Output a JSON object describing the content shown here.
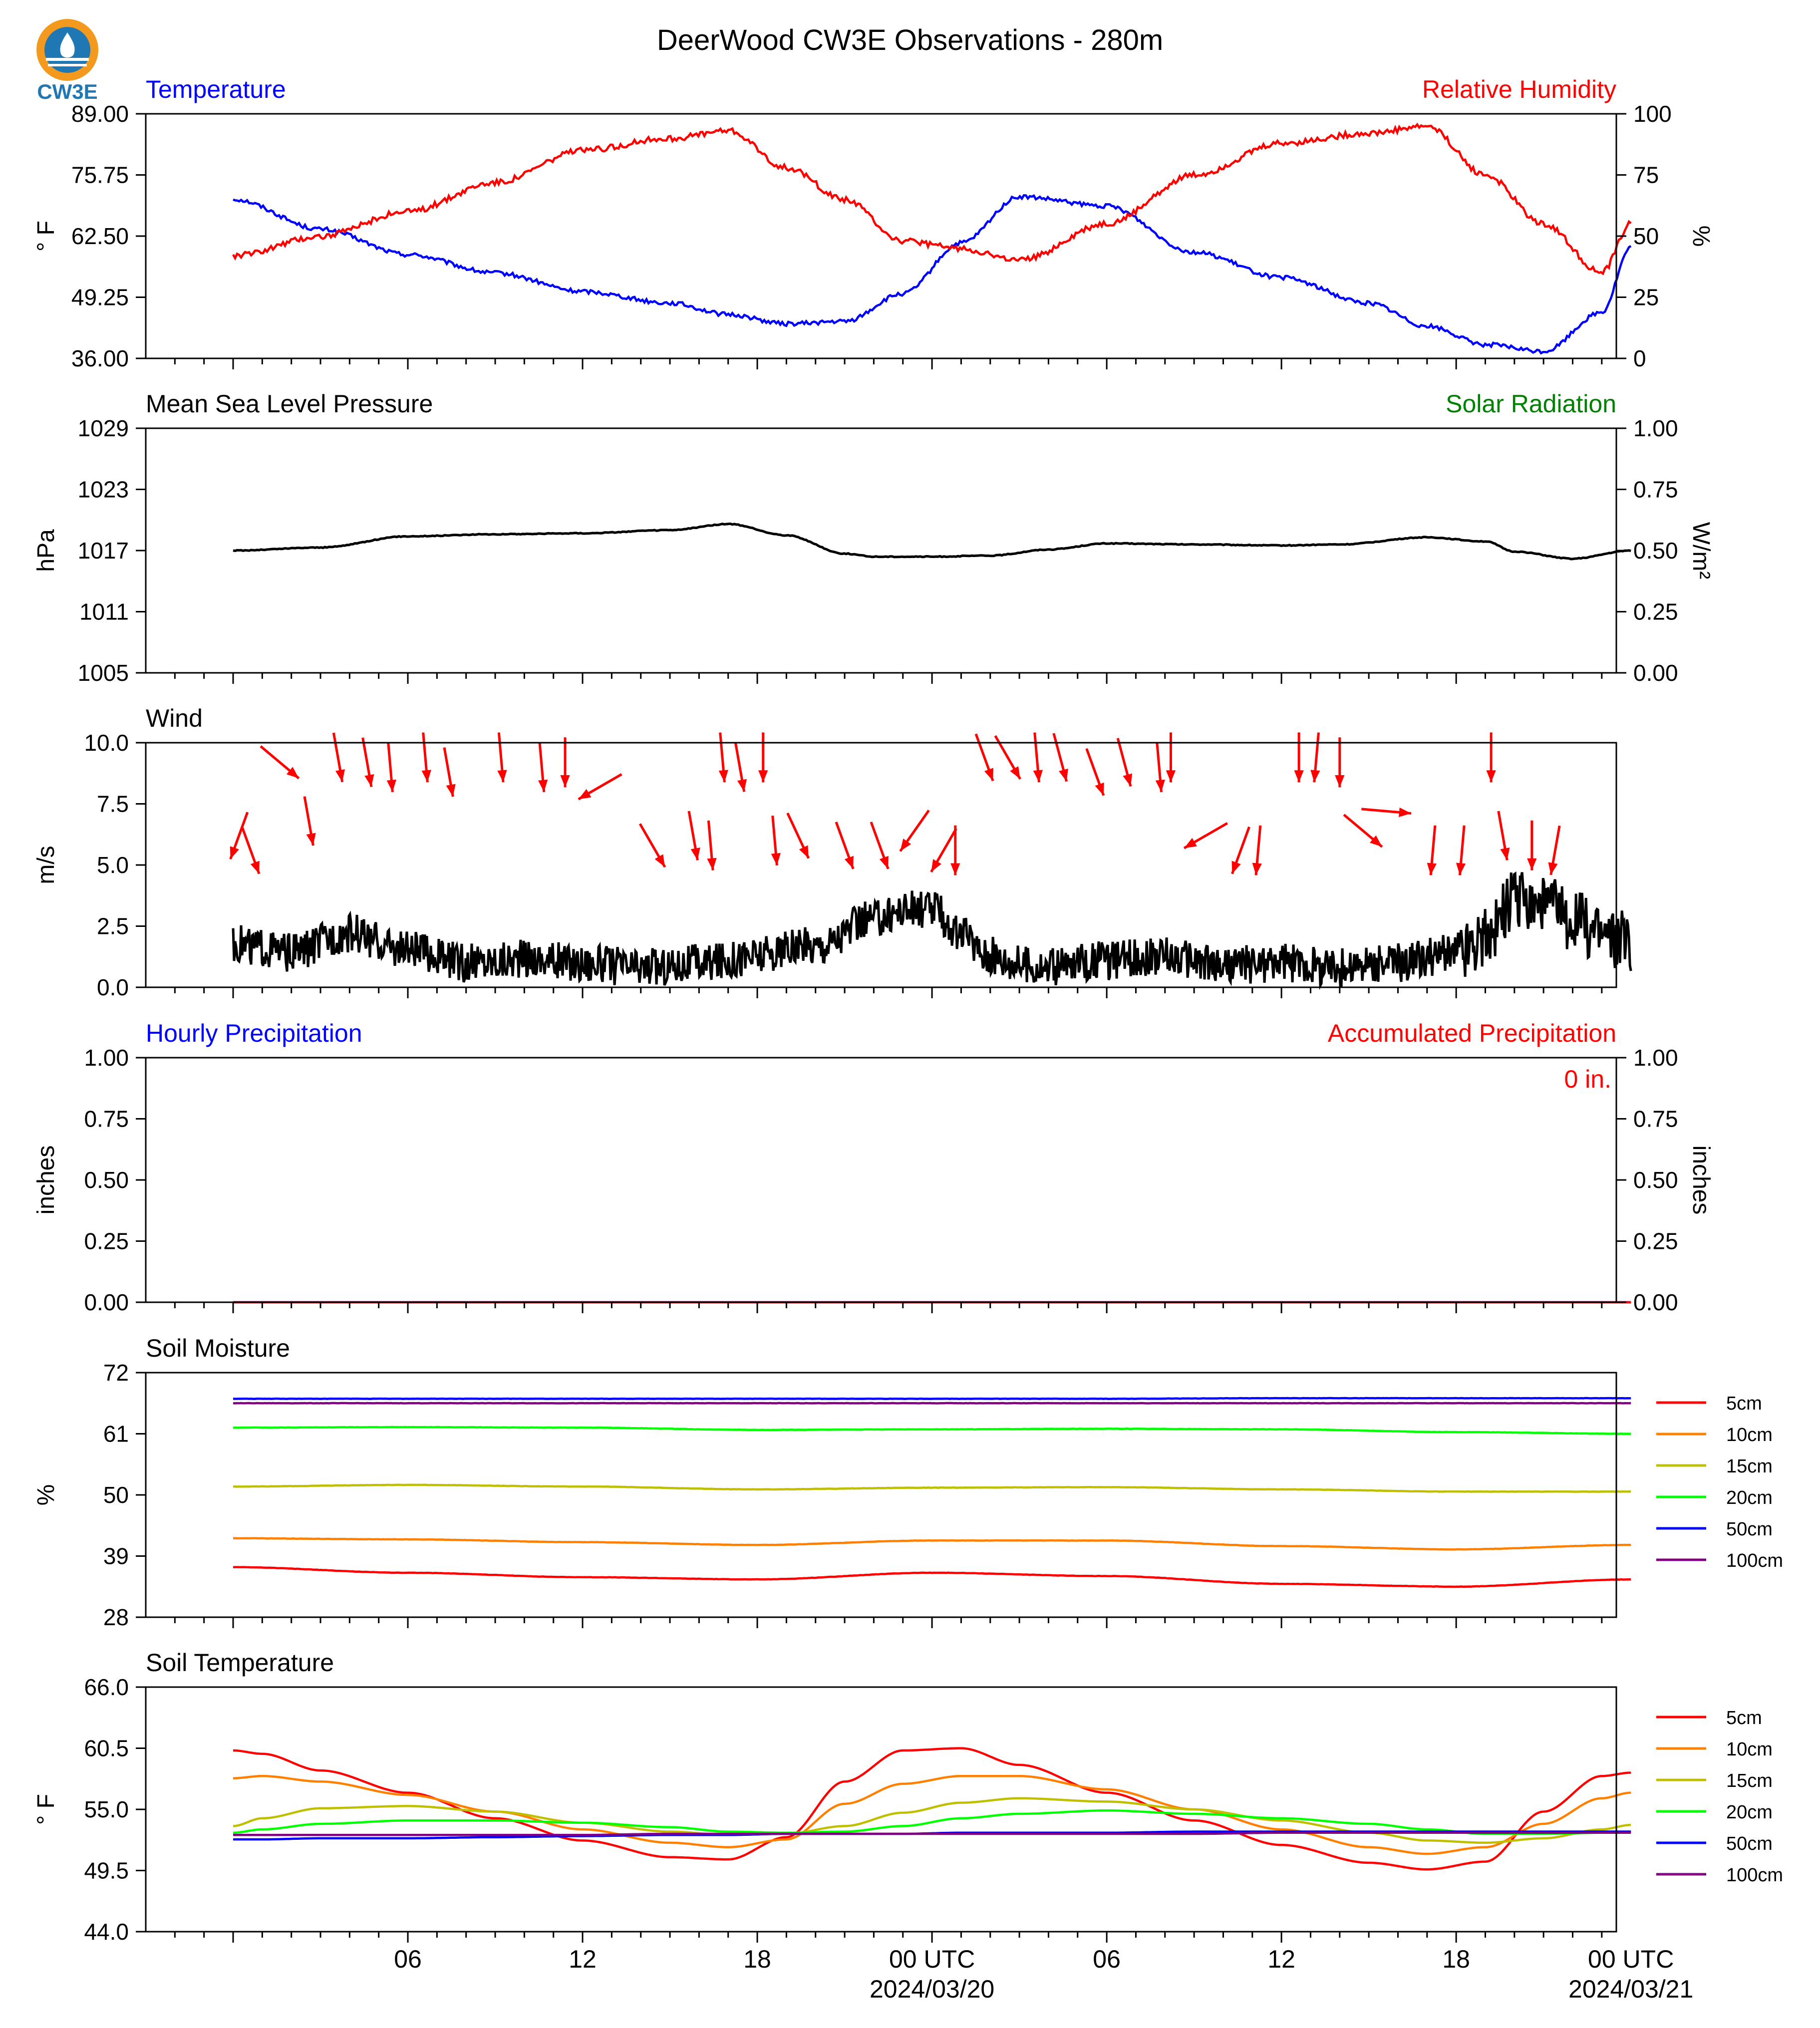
{
  "figure": {
    "title": "DeerWood CW3E Observations - 280m",
    "logo_text": "CW3E",
    "x_ticks": [
      "06",
      "12",
      "18",
      "00 UTC",
      "06",
      "12",
      "18",
      "00 UTC"
    ],
    "x_dates": [
      "2024/03/20",
      "2024/03/21"
    ],
    "colors": {
      "temperature": "#0000ff",
      "humidity": "#ff0000",
      "pressure": "#000000",
      "wind": "#000000",
      "arrows": "#ff0000",
      "solar": "#008000"
    }
  },
  "chart_data": [
    {
      "id": "temp_rh",
      "type": "line",
      "title_left": "Temperature",
      "title_right": "Relative Humidity",
      "ylabel_left": "° F",
      "ylabel_right": "%",
      "yticks_left": [
        "89.00",
        "75.75",
        "62.50",
        "49.25",
        "36.00"
      ],
      "yticks_right": [
        "100",
        "75",
        "50",
        "25",
        "0"
      ],
      "ylim_left": [
        36,
        89
      ],
      "ylim_right": [
        0,
        100
      ],
      "x_hours": [
        0,
        3,
        6,
        9,
        12,
        15,
        17,
        19,
        21,
        23,
        25,
        27,
        30,
        33,
        36,
        39,
        41,
        43,
        45,
        47,
        48
      ],
      "series": [
        {
          "name": "Temperature",
          "axis": "left",
          "color": "#0000ff",
          "values": [
            70.5,
            64,
            58.5,
            54.5,
            50.5,
            48,
            45.5,
            43.5,
            44,
            50,
            61,
            71,
            69,
            59,
            53.5,
            48,
            43,
            39,
            37.5,
            46,
            60
          ]
        },
        {
          "name": "Relative Humidity",
          "axis": "right",
          "color": "#ff0000",
          "values": [
            42,
            50,
            60,
            72,
            85,
            90,
            93,
            78,
            65,
            48,
            45,
            40,
            55,
            75,
            88,
            92,
            95,
            75,
            55,
            35,
            55
          ]
        }
      ]
    },
    {
      "id": "pressure",
      "type": "line",
      "title_left": "Mean Sea Level Pressure",
      "title_right": "Solar Radiation",
      "ylabel_left": "hPa",
      "ylabel_right": "W/m²",
      "yticks_left": [
        "1029",
        "1023",
        "1017",
        "1011",
        "1005"
      ],
      "yticks_right": [
        "1.00",
        "0.75",
        "0.50",
        "0.25",
        "0.00"
      ],
      "ylim_left": [
        1005,
        1029
      ],
      "ylim_right": [
        0,
        1
      ],
      "x_hours": [
        0,
        3,
        6,
        9,
        12,
        15,
        17,
        19,
        21,
        22,
        24,
        26,
        28,
        30,
        33,
        36,
        38,
        41,
        43,
        44,
        46,
        48
      ],
      "series": [
        {
          "name": "Mean Sea Level Pressure",
          "axis": "left",
          "color": "#000000",
          "values": [
            1017,
            1017.3,
            1018.4,
            1018.6,
            1018.7,
            1019,
            1019.6,
            1018.5,
            1016.7,
            1016.4,
            1016.4,
            1016.5,
            1017.1,
            1017.7,
            1017.6,
            1017.5,
            1017.6,
            1018.3,
            1017.9,
            1016.9,
            1016.2,
            1017
          ]
        }
      ]
    },
    {
      "id": "wind",
      "type": "line",
      "title_left": "Wind",
      "ylabel_left": "m/s",
      "yticks_left": [
        "10.0",
        "7.5",
        "5.0",
        "2.5",
        "0.0"
      ],
      "ylim_left": [
        0,
        10
      ],
      "x_hours": [
        0,
        2,
        4,
        6,
        8,
        10,
        12,
        14,
        16,
        18,
        20,
        22,
        23,
        24,
        25,
        26,
        27,
        28,
        30,
        32,
        34,
        36,
        38,
        40,
        42,
        43,
        44,
        45,
        46,
        47,
        48
      ],
      "series": [
        {
          "name": "Wind",
          "axis": "left",
          "color": "#000000",
          "values": [
            1.8,
            1.4,
            2.2,
            1.5,
            1.0,
            1.2,
            1.0,
            0.8,
            1.0,
            1.3,
            1.7,
            2.8,
            3.2,
            3.2,
            2.1,
            1.3,
            1.0,
            0.8,
            1.1,
            1.3,
            0.9,
            1.0,
            0.8,
            1.0,
            1.4,
            2.0,
            3.6,
            3.3,
            2.8,
            2.2,
            1.9
          ]
        }
      ],
      "arrows": {
        "x_hours": [
          0.2,
          0.6,
          1.6,
          2.6,
          3.6,
          4.6,
          5.4,
          6.6,
          7.4,
          9.2,
          10.6,
          11.4,
          12.6,
          14.4,
          15.8,
          16.4,
          16.8,
          17.4,
          18.2,
          18.6,
          19.4,
          21.0,
          22.2,
          23.4,
          24.4,
          24.8,
          25.8,
          26.6,
          27.6,
          28.4,
          29.6,
          30.6,
          31.8,
          32.2,
          33.4,
          34.6,
          35.2,
          36.6,
          37.2,
          38.0,
          38.8,
          39.6,
          41.2,
          42.2,
          43.2,
          43.6,
          44.6,
          45.4
        ],
        "y_ms": [
          6.2,
          5.6,
          9.2,
          6.8,
          9.4,
          9.2,
          9.0,
          9.4,
          8.8,
          9.4,
          9.0,
          9.2,
          8.2,
          5.8,
          6.2,
          5.8,
          9.4,
          9.0,
          9.4,
          6.0,
          6.2,
          5.8,
          5.8,
          6.4,
          5.6,
          5.6,
          9.4,
          9.4,
          9.4,
          9.4,
          8.8,
          9.2,
          9.0,
          9.4,
          6.2,
          5.6,
          5.6,
          9.4,
          9.4,
          9.2,
          6.4,
          7.2,
          5.6,
          5.6,
          9.4,
          6.2,
          5.8,
          5.6
        ],
        "bearing_deg": [
          200,
          160,
          130,
          170,
          170,
          170,
          175,
          175,
          170,
          175,
          175,
          180,
          240,
          150,
          170,
          175,
          175,
          170,
          180,
          175,
          155,
          160,
          160,
          215,
          210,
          180,
          160,
          150,
          175,
          165,
          160,
          165,
          175,
          180,
          240,
          200,
          185,
          180,
          185,
          180,
          130,
          95,
          185,
          185,
          180,
          170,
          180,
          190
        ]
      }
    },
    {
      "id": "precip",
      "type": "line",
      "title_left": "Hourly Precipitation",
      "title_right": "Accumulated Precipitation",
      "annotation": "0 in.",
      "ylabel_left": "inches",
      "ylabel_right": "inches",
      "yticks_left": [
        "1.00",
        "0.75",
        "0.50",
        "0.25",
        "0.00"
      ],
      "yticks_right": [
        "1.00",
        "0.75",
        "0.50",
        "0.25",
        "0.00"
      ],
      "ylim_left": [
        0,
        1
      ],
      "ylim_right": [
        0,
        1
      ],
      "x_hours": [
        0,
        48
      ],
      "series": [
        {
          "name": "Hourly Precipitation",
          "axis": "left",
          "color": "#0000ff",
          "values": [
            0,
            0
          ]
        },
        {
          "name": "Accumulated Precipitation",
          "axis": "right",
          "color": "#ff0000",
          "values": [
            0,
            0
          ]
        }
      ]
    },
    {
      "id": "soil_moisture",
      "type": "line",
      "title_left": "Soil Moisture",
      "ylabel_left": "%",
      "yticks_left": [
        "72",
        "61",
        "50",
        "39",
        "28"
      ],
      "ylim_left": [
        28,
        72
      ],
      "x_hours": [
        0,
        6,
        12,
        18,
        24,
        30,
        36,
        42,
        48
      ],
      "series": [
        {
          "name": "5cm",
          "axis": "left",
          "color": "#ff0000",
          "values": [
            37,
            36,
            35.2,
            34.8,
            36,
            35.4,
            34,
            33.5,
            34.8
          ]
        },
        {
          "name": "10cm",
          "axis": "left",
          "color": "#ff8000",
          "values": [
            42.2,
            42,
            41.5,
            41,
            41.8,
            41.8,
            40.8,
            40.2,
            41
          ]
        },
        {
          "name": "15cm",
          "axis": "left",
          "color": "#bfbf00",
          "values": [
            51.5,
            51.8,
            51.5,
            51,
            51.3,
            51.4,
            51,
            50.6,
            50.6
          ]
        },
        {
          "name": "20cm",
          "axis": "left",
          "color": "#00ff00",
          "values": [
            62.1,
            62.2,
            62.1,
            61.7,
            61.8,
            61.9,
            61.8,
            61.3,
            61
          ]
        },
        {
          "name": "50cm",
          "axis": "left",
          "color": "#0000ff",
          "values": [
            67.3,
            67.3,
            67.3,
            67.3,
            67.3,
            67.3,
            67.4,
            67.4,
            67.4
          ]
        },
        {
          "name": "100cm",
          "axis": "left",
          "color": "#800080",
          "values": [
            66.5,
            66.5,
            66.5,
            66.5,
            66.5,
            66.5,
            66.5,
            66.5,
            66.5
          ]
        }
      ]
    },
    {
      "id": "soil_temperature",
      "type": "line",
      "title_left": "Soil Temperature",
      "ylabel_left": "° F",
      "yticks_left": [
        "66.0",
        "60.5",
        "55.0",
        "49.5",
        "44.0"
      ],
      "ylim_left": [
        44,
        66
      ],
      "x_hours": [
        0,
        1,
        3,
        6,
        9,
        12,
        15,
        17,
        19,
        21,
        23,
        25,
        27,
        30,
        33,
        36,
        39,
        41,
        43,
        45,
        47,
        48
      ],
      "series": [
        {
          "name": "5cm",
          "axis": "left",
          "color": "#ff0000",
          "values": [
            60.3,
            60,
            58.5,
            56.5,
            54.2,
            52.2,
            50.7,
            50.5,
            52.5,
            57.5,
            60.3,
            60.5,
            59,
            56.5,
            54,
            51.8,
            50.2,
            49.6,
            50.3,
            54.8,
            58,
            58.3
          ]
        },
        {
          "name": "10cm",
          "axis": "left",
          "color": "#ff8000",
          "values": [
            57.8,
            58,
            57.5,
            56.3,
            54.8,
            53.2,
            52,
            51.6,
            52.3,
            55.5,
            57.3,
            58,
            58,
            56.8,
            55,
            53.2,
            51.6,
            51,
            51.6,
            53.7,
            56,
            56.5
          ]
        },
        {
          "name": "15cm",
          "axis": "left",
          "color": "#bfbf00",
          "values": [
            53.5,
            54.2,
            55.1,
            55.3,
            54.8,
            53.8,
            53,
            52.7,
            52.8,
            53.5,
            54.7,
            55.6,
            56,
            55.7,
            55,
            54,
            52.9,
            52.2,
            52,
            52.4,
            53.2,
            53.6
          ]
        },
        {
          "name": "20cm",
          "axis": "left",
          "color": "#00ff00",
          "values": [
            52.9,
            53.2,
            53.7,
            54,
            54,
            53.8,
            53.4,
            53,
            52.9,
            53,
            53.5,
            54.2,
            54.6,
            54.9,
            54.6,
            54.2,
            53.7,
            53.2,
            52.8,
            52.8,
            52.9,
            53
          ]
        },
        {
          "name": "50cm",
          "axis": "left",
          "color": "#0000ff",
          "values": [
            52.3,
            52.3,
            52.4,
            52.4,
            52.5,
            52.6,
            52.7,
            52.7,
            52.8,
            52.8,
            52.8,
            52.9,
            52.9,
            52.9,
            53,
            53,
            53,
            53,
            53,
            53,
            53,
            53
          ]
        },
        {
          "name": "100cm",
          "axis": "left",
          "color": "#800080",
          "values": [
            52.7,
            52.7,
            52.7,
            52.7,
            52.7,
            52.7,
            52.8,
            52.8,
            52.8,
            52.8,
            52.8,
            52.8,
            52.8,
            52.8,
            52.8,
            52.9,
            52.9,
            52.9,
            52.9,
            52.9,
            52.9,
            52.9
          ]
        }
      ]
    }
  ]
}
